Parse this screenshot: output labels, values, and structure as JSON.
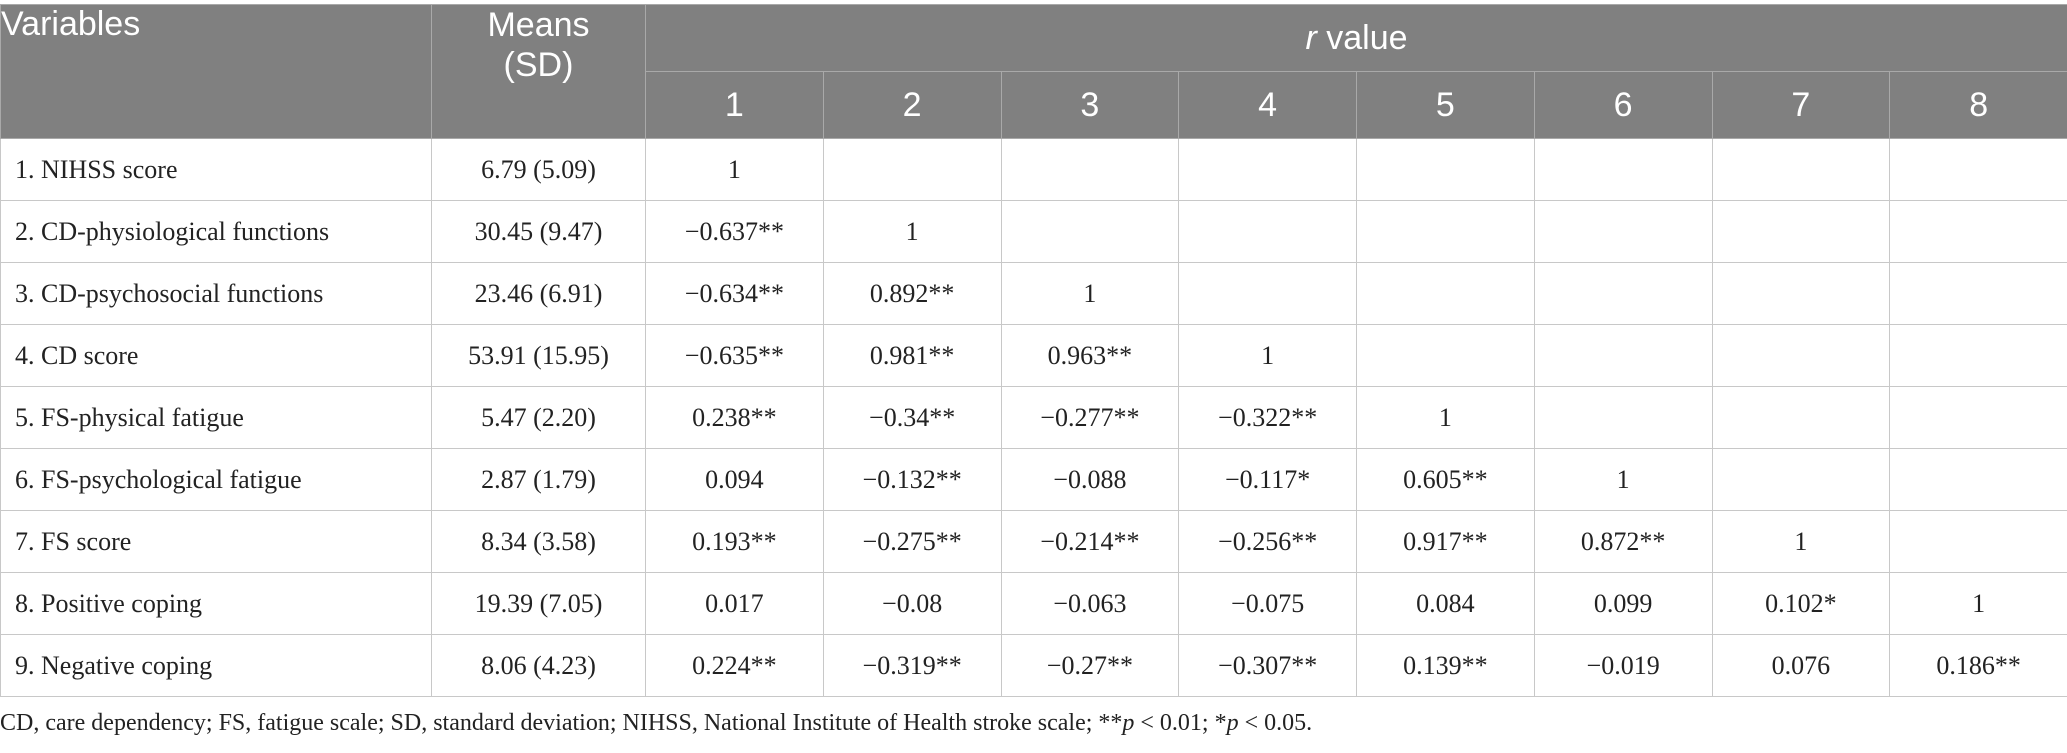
{
  "header": {
    "variables_label": "Variables",
    "means_label_line1": "Means",
    "means_label_line2": "(SD)",
    "r_italic": "r",
    "r_rest": " value",
    "column_numbers": [
      "1",
      "2",
      "3",
      "4",
      "5",
      "6",
      "7",
      "8"
    ]
  },
  "rows": [
    {
      "variable": "1. NIHSS score",
      "mean": "6.79 (5.09)",
      "values": [
        "1",
        "",
        "",
        "",
        "",
        "",
        "",
        ""
      ]
    },
    {
      "variable": "2. CD-physiological functions",
      "mean": "30.45 (9.47)",
      "values": [
        "−0.637**",
        "1",
        "",
        "",
        "",
        "",
        "",
        ""
      ]
    },
    {
      "variable": "3. CD-psychosocial functions",
      "mean": "23.46 (6.91)",
      "values": [
        "−0.634**",
        "0.892**",
        "1",
        "",
        "",
        "",
        "",
        ""
      ]
    },
    {
      "variable": "4. CD score",
      "mean": "53.91 (15.95)",
      "values": [
        "−0.635**",
        "0.981**",
        "0.963**",
        "1",
        "",
        "",
        "",
        ""
      ]
    },
    {
      "variable": "5. FS-physical fatigue",
      "mean": "5.47 (2.20)",
      "values": [
        "0.238**",
        "−0.34**",
        "−0.277**",
        "−0.322**",
        "1",
        "",
        "",
        ""
      ]
    },
    {
      "variable": "6. FS-psychological fatigue",
      "mean": "2.87 (1.79)",
      "values": [
        "0.094",
        "−0.132**",
        "−0.088",
        "−0.117*",
        "0.605**",
        "1",
        "",
        ""
      ]
    },
    {
      "variable": "7. FS score",
      "mean": "8.34 (3.58)",
      "values": [
        "0.193**",
        "−0.275**",
        "−0.214**",
        "−0.256**",
        "0.917**",
        "0.872**",
        "1",
        ""
      ]
    },
    {
      "variable": "8. Positive coping",
      "mean": "19.39 (7.05)",
      "values": [
        "0.017",
        "−0.08",
        "−0.063",
        "−0.075",
        "0.084",
        "0.099",
        "0.102*",
        "1"
      ]
    },
    {
      "variable": "9. Negative coping",
      "mean": "8.06 (4.23)",
      "values": [
        "0.224**",
        "−0.319**",
        "−0.27**",
        "−0.307**",
        "0.139**",
        "−0.019",
        "0.076",
        "0.186**"
      ]
    }
  ],
  "footnote": {
    "part1": "CD, care dependency; FS, fatigue scale; SD, standard deviation; NIHSS, National Institute of Health stroke scale; **",
    "p1": "p",
    "part2": " < 0.01; *",
    "p2": "p",
    "part3": " < 0.05."
  },
  "colors": {
    "header_bg": "#808080",
    "header_text": "#ffffff",
    "body_text": "#222222"
  }
}
